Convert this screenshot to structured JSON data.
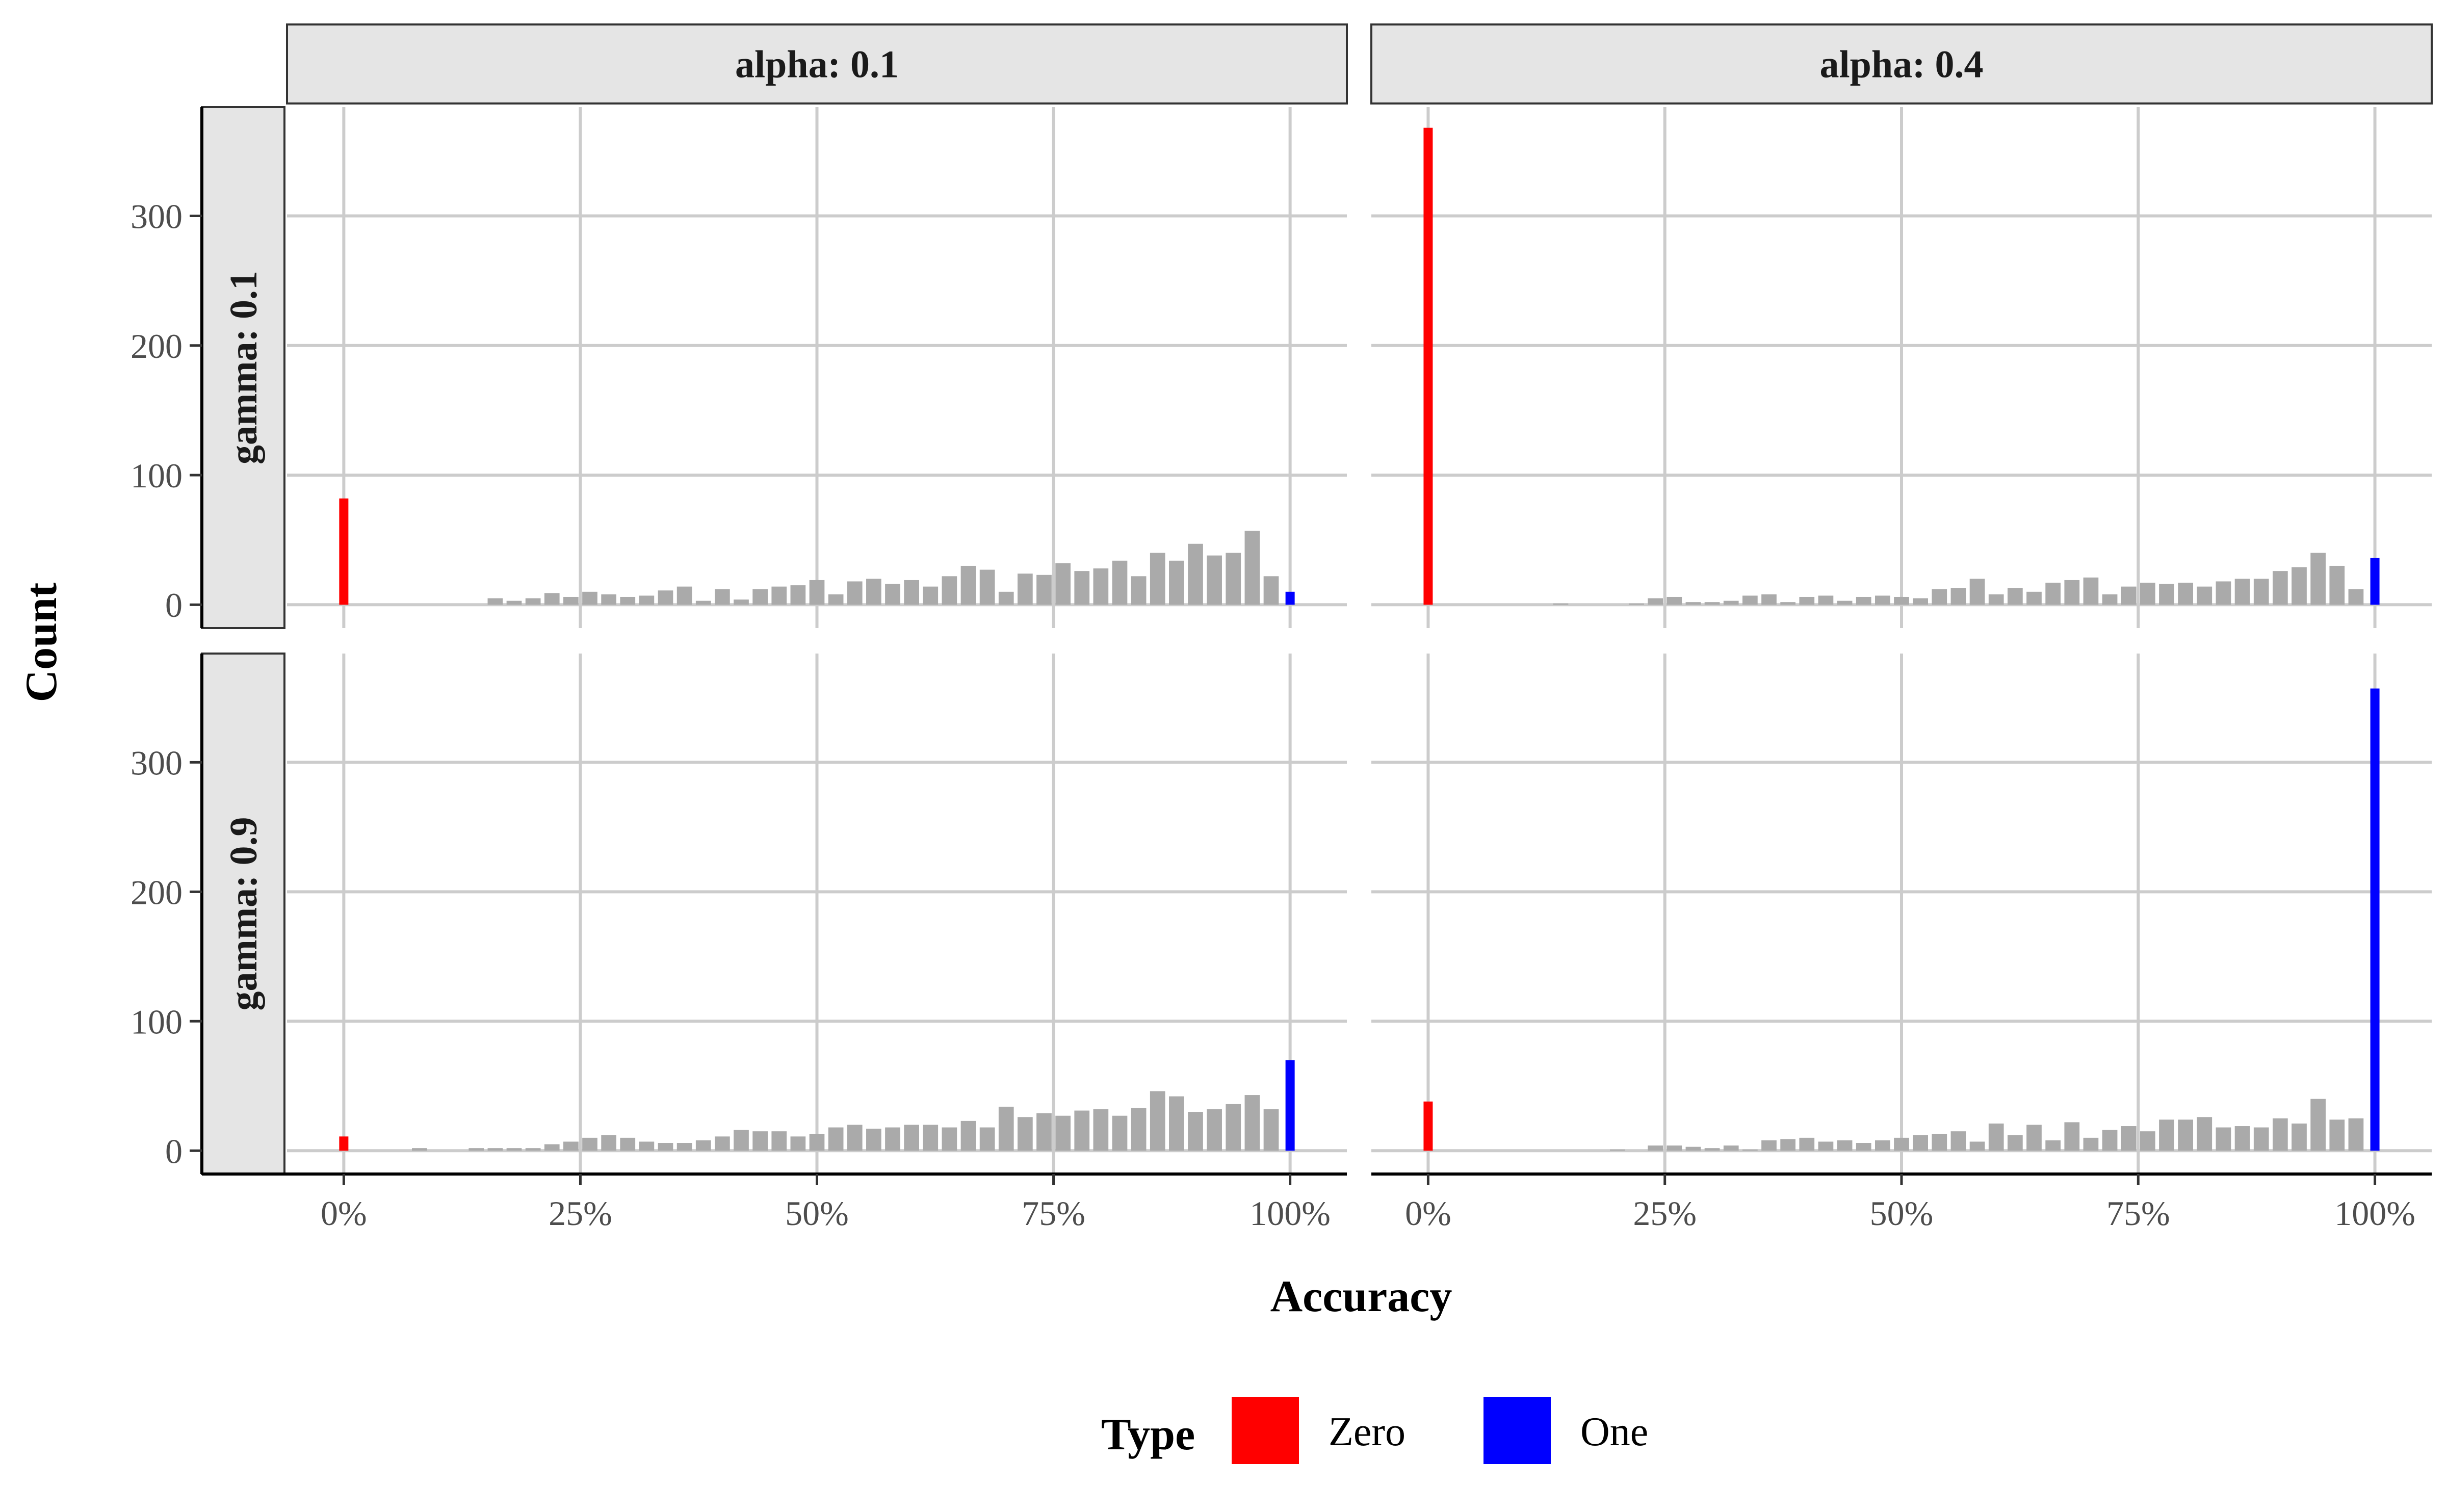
{
  "chart_data": {
    "type": "bar",
    "facet_layout": "grid",
    "x_axis_title": "Accuracy",
    "y_axis_title": "Count",
    "x_ticks": [
      {
        "value": 0,
        "label": "0%"
      },
      {
        "value": 25,
        "label": "25%"
      },
      {
        "value": 50,
        "label": "50%"
      },
      {
        "value": 75,
        "label": "75%"
      },
      {
        "value": 100,
        "label": "100%"
      }
    ],
    "y_ticks": [
      {
        "value": 0,
        "label": "0"
      },
      {
        "value": 100,
        "label": "100"
      },
      {
        "value": 200,
        "label": "200"
      },
      {
        "value": 300,
        "label": "300"
      }
    ],
    "xlim": [
      -6,
      106
    ],
    "colors": {
      "Other": "#aaaaaa",
      "Zero": "#ff0000",
      "One": "#0000ff",
      "grid": "#cccccc",
      "strip_fill": "#e5e5e5"
    },
    "legend": {
      "title": "Type",
      "position": "bottom",
      "entries": [
        {
          "name": "Zero",
          "color": "#ff0000"
        },
        {
          "name": "One",
          "color": "#0000ff"
        }
      ]
    },
    "column_strips": [
      "alpha: 0.1",
      "alpha: 0.4"
    ],
    "row_strips": [
      "gamma: 0.1",
      "gamma: 0.9"
    ],
    "panels": [
      {
        "col": 0,
        "row": 0,
        "ylim": [
          -18,
          384
        ],
        "bins": [
          [
            16,
            5
          ],
          [
            18,
            3
          ],
          [
            20,
            5
          ],
          [
            22,
            9
          ],
          [
            24,
            6
          ],
          [
            26,
            10
          ],
          [
            28,
            8
          ],
          [
            30,
            6
          ],
          [
            32,
            7
          ],
          [
            34,
            11
          ],
          [
            36,
            14
          ],
          [
            38,
            3
          ],
          [
            40,
            12
          ],
          [
            42,
            4
          ],
          [
            44,
            12
          ],
          [
            46,
            14
          ],
          [
            48,
            15
          ],
          [
            50,
            19
          ],
          [
            52,
            8
          ],
          [
            54,
            18
          ],
          [
            56,
            20
          ],
          [
            58,
            16
          ],
          [
            60,
            19
          ],
          [
            62,
            14
          ],
          [
            64,
            22
          ],
          [
            66,
            30
          ],
          [
            68,
            27
          ],
          [
            70,
            10
          ],
          [
            72,
            24
          ],
          [
            74,
            23
          ],
          [
            76,
            32
          ],
          [
            78,
            26
          ],
          [
            80,
            28
          ],
          [
            82,
            34
          ],
          [
            84,
            22
          ],
          [
            86,
            40
          ],
          [
            88,
            34
          ],
          [
            90,
            47
          ],
          [
            92,
            38
          ],
          [
            94,
            40
          ],
          [
            96,
            57
          ],
          [
            98,
            22
          ]
        ],
        "zero": 82,
        "one": 10
      },
      {
        "col": 1,
        "row": 0,
        "ylim": [
          -18,
          384
        ],
        "bins": [
          [
            14,
            1
          ],
          [
            22,
            1
          ],
          [
            24,
            5
          ],
          [
            26,
            6
          ],
          [
            28,
            2
          ],
          [
            30,
            2
          ],
          [
            32,
            3
          ],
          [
            34,
            7
          ],
          [
            36,
            8
          ],
          [
            38,
            2
          ],
          [
            40,
            6
          ],
          [
            42,
            7
          ],
          [
            44,
            3
          ],
          [
            46,
            6
          ],
          [
            48,
            7
          ],
          [
            50,
            6
          ],
          [
            52,
            5
          ],
          [
            54,
            12
          ],
          [
            56,
            13
          ],
          [
            58,
            20
          ],
          [
            60,
            8
          ],
          [
            62,
            13
          ],
          [
            64,
            10
          ],
          [
            66,
            17
          ],
          [
            68,
            19
          ],
          [
            70,
            21
          ],
          [
            72,
            8
          ],
          [
            74,
            14
          ],
          [
            76,
            17
          ],
          [
            78,
            16
          ],
          [
            80,
            17
          ],
          [
            82,
            14
          ],
          [
            84,
            18
          ],
          [
            86,
            20
          ],
          [
            88,
            20
          ],
          [
            90,
            26
          ],
          [
            92,
            29
          ],
          [
            94,
            40
          ],
          [
            96,
            30
          ],
          [
            98,
            12
          ]
        ],
        "zero": 368,
        "one": 36
      },
      {
        "col": 0,
        "row": 1,
        "ylim": [
          -18,
          384
        ],
        "bins": [
          [
            8,
            2
          ],
          [
            14,
            2
          ],
          [
            16,
            2
          ],
          [
            18,
            2
          ],
          [
            20,
            2
          ],
          [
            22,
            5
          ],
          [
            24,
            7
          ],
          [
            26,
            10
          ],
          [
            28,
            12
          ],
          [
            30,
            10
          ],
          [
            32,
            7
          ],
          [
            34,
            6
          ],
          [
            36,
            6
          ],
          [
            38,
            8
          ],
          [
            40,
            11
          ],
          [
            42,
            16
          ],
          [
            44,
            15
          ],
          [
            46,
            15
          ],
          [
            48,
            11
          ],
          [
            50,
            13
          ],
          [
            52,
            18
          ],
          [
            54,
            20
          ],
          [
            56,
            17
          ],
          [
            58,
            18
          ],
          [
            60,
            20
          ],
          [
            62,
            20
          ],
          [
            64,
            18
          ],
          [
            66,
            23
          ],
          [
            68,
            18
          ],
          [
            70,
            34
          ],
          [
            72,
            26
          ],
          [
            74,
            29
          ],
          [
            76,
            27
          ],
          [
            78,
            31
          ],
          [
            80,
            32
          ],
          [
            82,
            27
          ],
          [
            84,
            33
          ],
          [
            86,
            46
          ],
          [
            88,
            42
          ],
          [
            90,
            30
          ],
          [
            92,
            32
          ],
          [
            94,
            36
          ],
          [
            96,
            43
          ],
          [
            98,
            32
          ]
        ],
        "zero": 11,
        "one": 70
      },
      {
        "col": 1,
        "row": 1,
        "ylim": [
          -18,
          384
        ],
        "bins": [
          [
            20,
            1
          ],
          [
            24,
            4
          ],
          [
            26,
            4
          ],
          [
            28,
            3
          ],
          [
            30,
            2
          ],
          [
            32,
            4
          ],
          [
            34,
            1
          ],
          [
            36,
            8
          ],
          [
            38,
            9
          ],
          [
            40,
            10
          ],
          [
            42,
            7
          ],
          [
            44,
            8
          ],
          [
            46,
            6
          ],
          [
            48,
            8
          ],
          [
            50,
            10
          ],
          [
            52,
            12
          ],
          [
            54,
            13
          ],
          [
            56,
            15
          ],
          [
            58,
            7
          ],
          [
            60,
            21
          ],
          [
            62,
            12
          ],
          [
            64,
            20
          ],
          [
            66,
            8
          ],
          [
            68,
            22
          ],
          [
            70,
            10
          ],
          [
            72,
            16
          ],
          [
            74,
            19
          ],
          [
            76,
            15
          ],
          [
            78,
            24
          ],
          [
            80,
            24
          ],
          [
            82,
            26
          ],
          [
            84,
            18
          ],
          [
            86,
            19
          ],
          [
            88,
            18
          ],
          [
            90,
            25
          ],
          [
            92,
            21
          ],
          [
            94,
            40
          ],
          [
            96,
            24
          ],
          [
            98,
            25
          ]
        ],
        "zero": 38,
        "one": 357
      }
    ]
  }
}
